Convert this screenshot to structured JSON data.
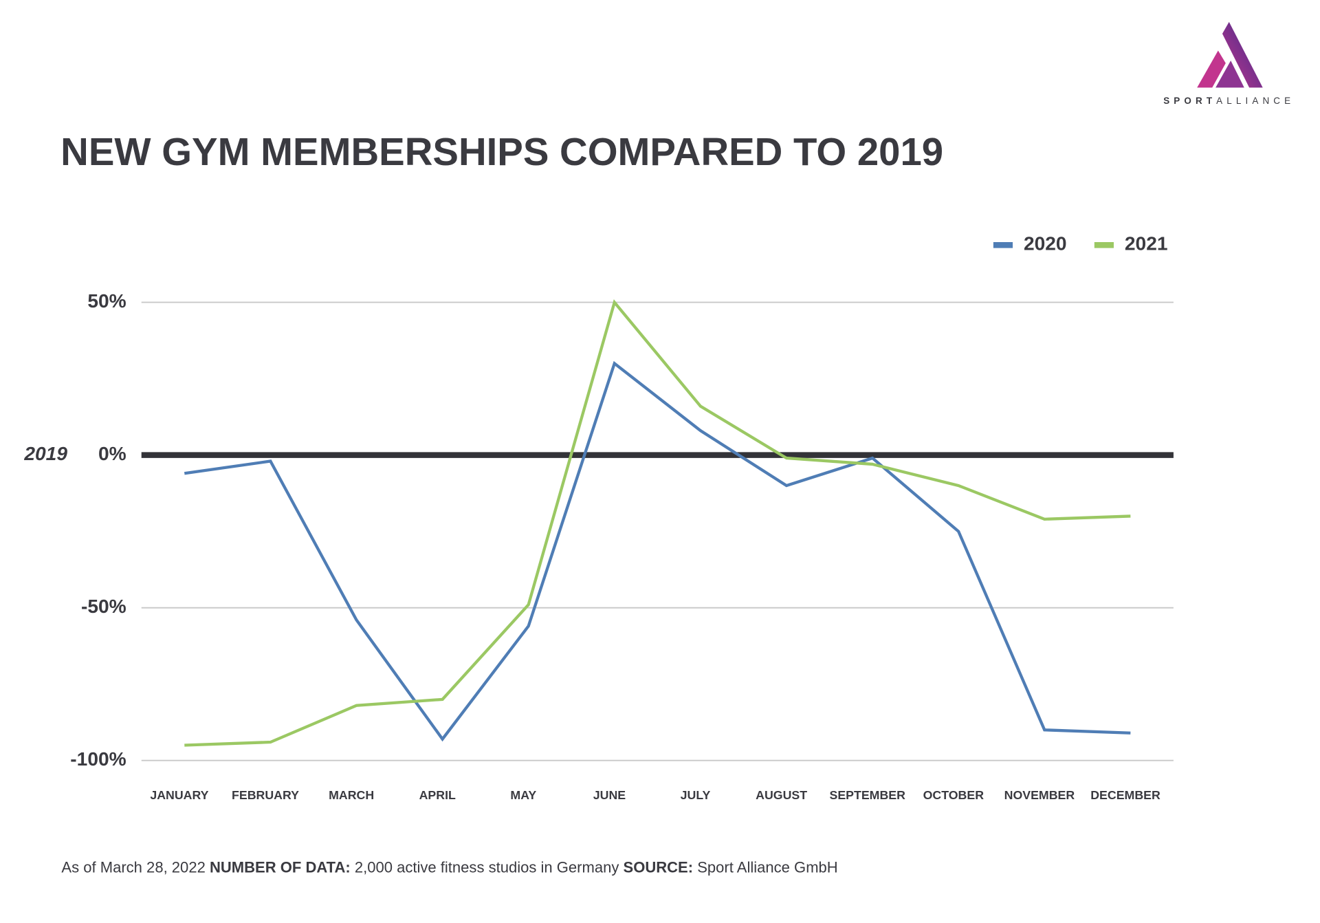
{
  "chart_data": {
    "type": "line",
    "title": "NEW GYM MEMBERSHIPS COMPARED TO 2019",
    "categories": [
      "JANUARY",
      "FEBRUARY",
      "MARCH",
      "APRIL",
      "MAY",
      "JUNE",
      "JULY",
      "AUGUST",
      "SEPTEMBER",
      "OCTOBER",
      "NOVEMBER",
      "DECEMBER"
    ],
    "series": [
      {
        "name": "2020",
        "color": "#4f7db5",
        "values": [
          -6,
          -2,
          -54,
          -93,
          -56,
          30,
          8,
          -10,
          -1,
          -25,
          -90,
          -91
        ]
      },
      {
        "name": "2021",
        "color": "#9bc863",
        "values": [
          -95,
          -94,
          -82,
          -80,
          -49,
          50,
          16,
          -1,
          -3,
          -10,
          -21,
          -20
        ]
      }
    ],
    "ylim": [
      -100,
      50
    ],
    "yticks": [
      {
        "value": -100,
        "label": "-100%"
      },
      {
        "value": -50,
        "label": "-50%"
      },
      {
        "value": 0,
        "label": "0%"
      },
      {
        "value": 50,
        "label": "50%"
      }
    ],
    "grid": true,
    "legend": "upper right",
    "reference_line": {
      "value": 0,
      "label": "2019"
    },
    "footnote": {
      "date": "As of March 28, 2022",
      "data_label": "NUMBER OF DATA:",
      "data_text": "2,000 active fitness studios in Germany",
      "source_label": "SOURCE:",
      "source_text": "Sport Alliance GmbH"
    },
    "logo": {
      "bold": "SPORT",
      "regular": "ALLIANCE"
    }
  }
}
